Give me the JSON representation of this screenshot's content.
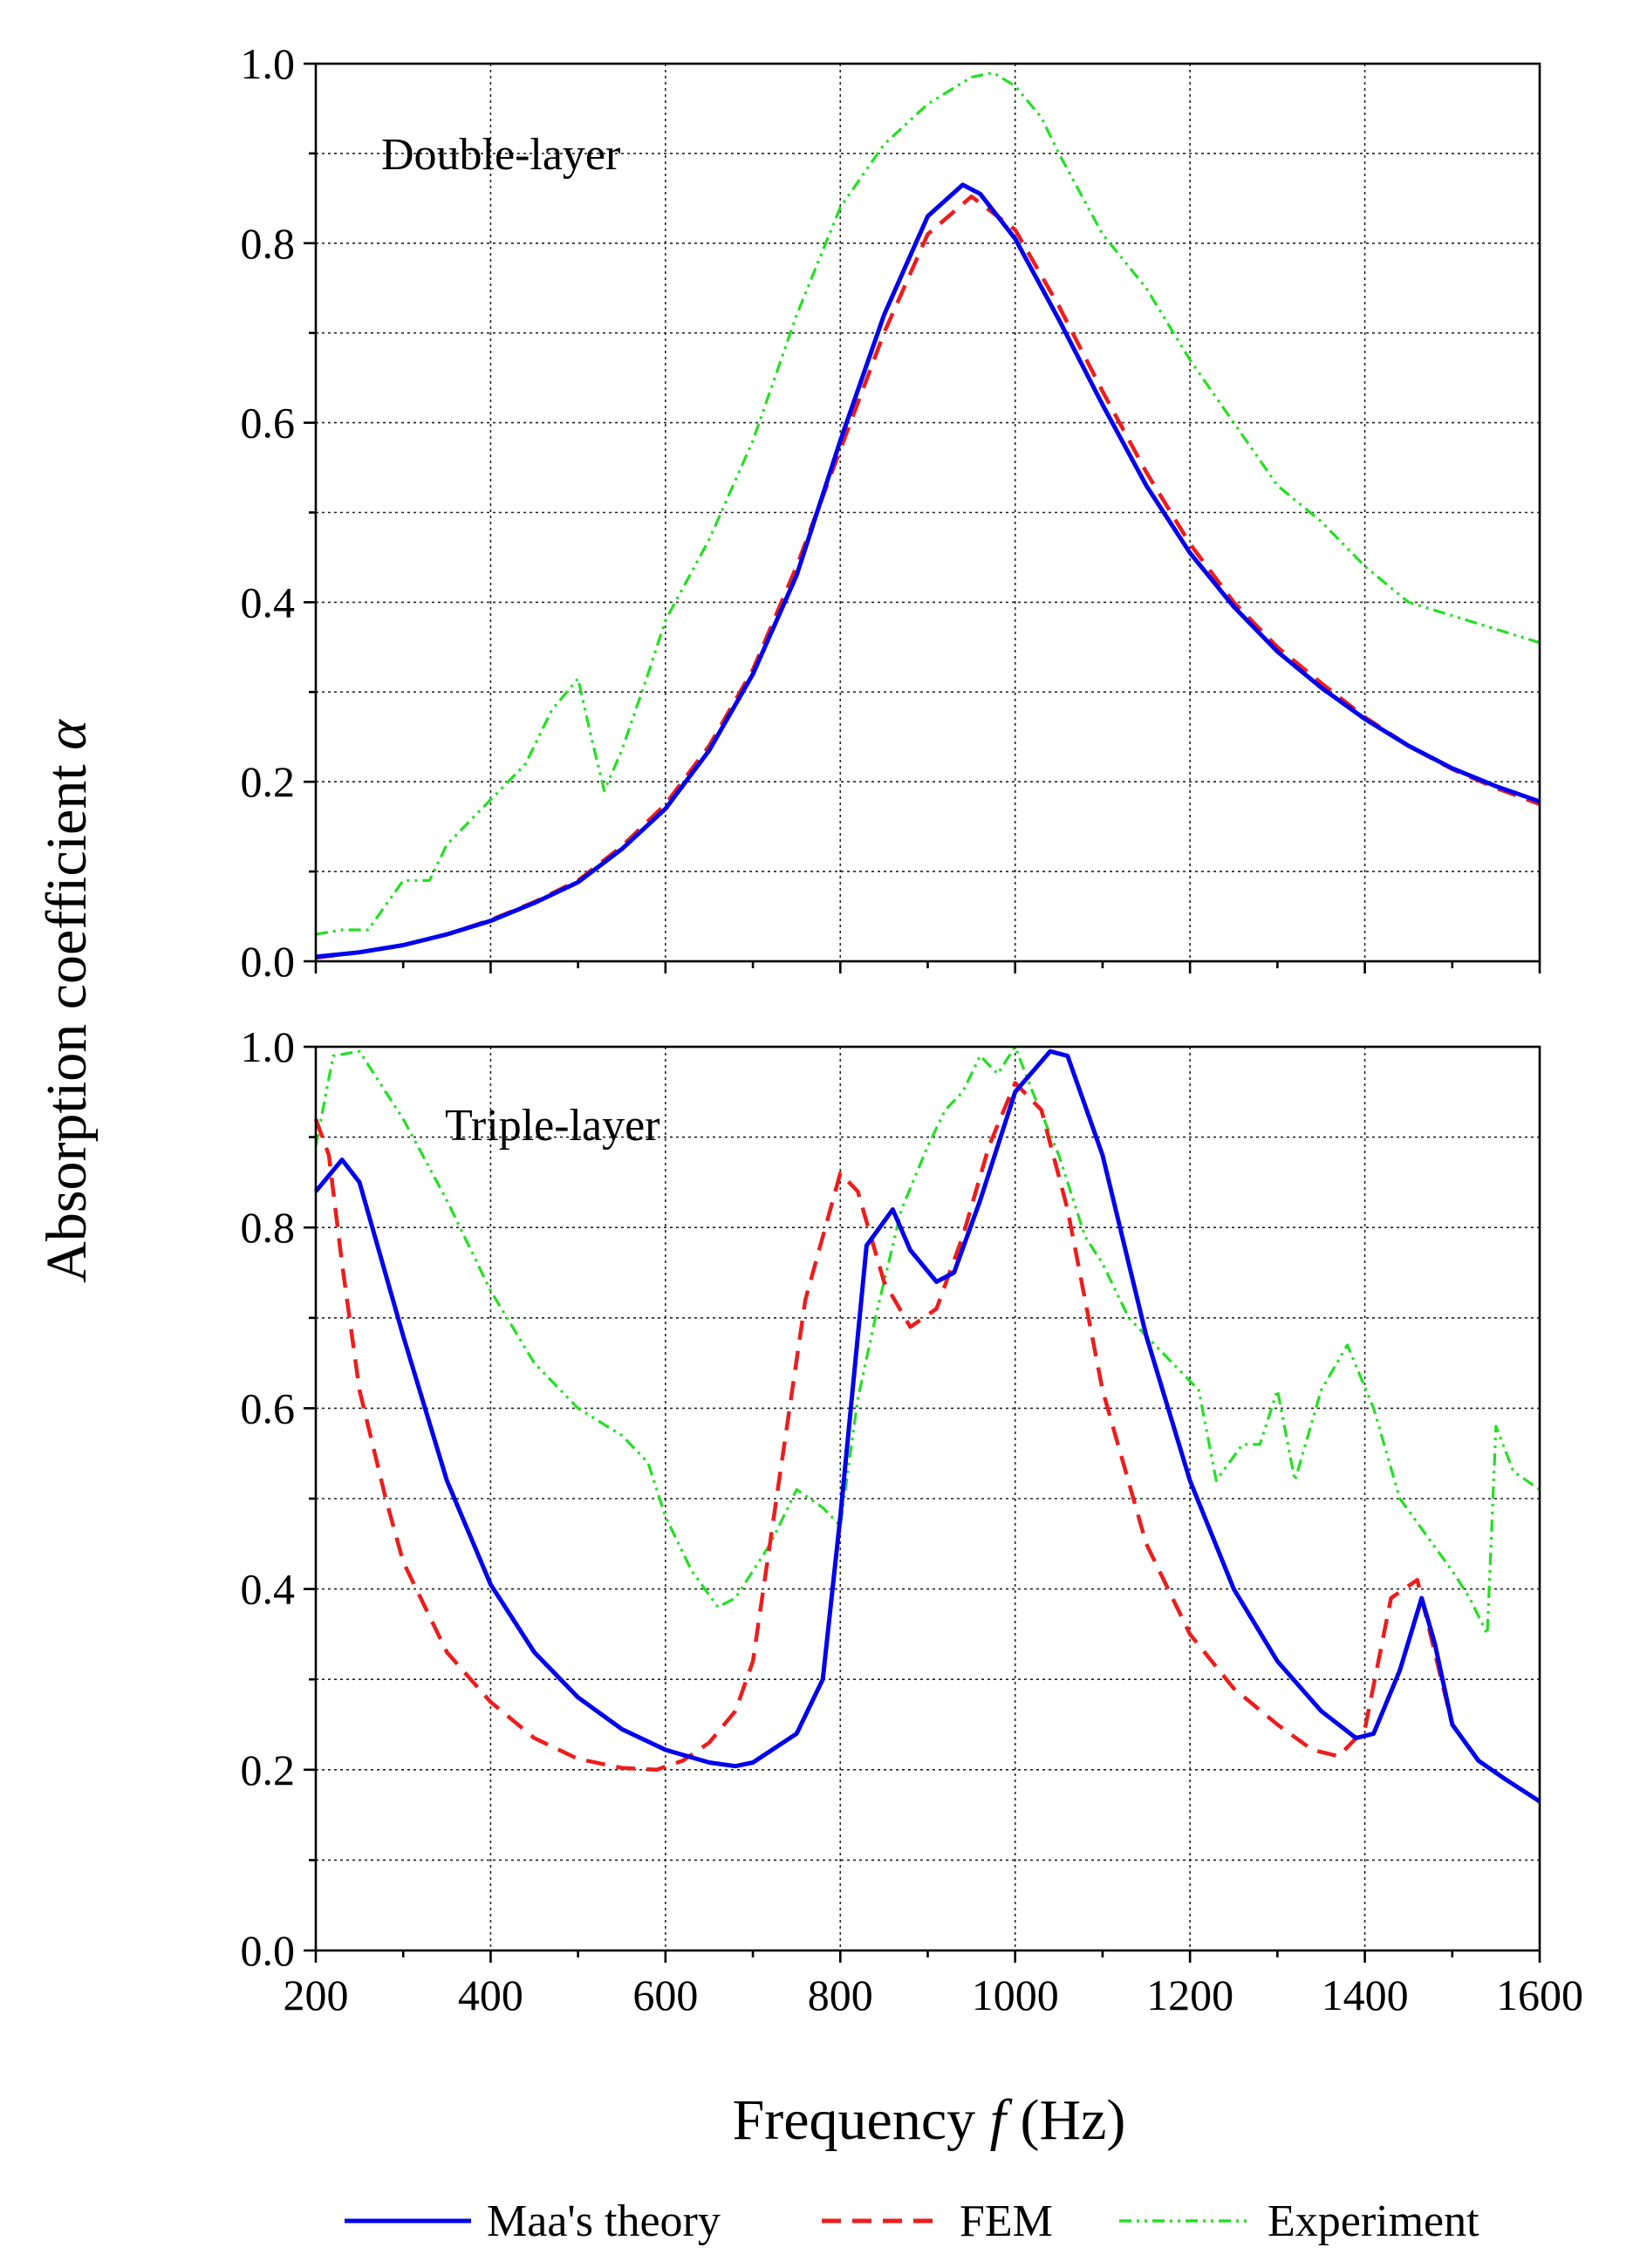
{
  "chart_data": {
    "type": "line",
    "ylabel": "Absorption coefficient",
    "ylabel_symbol": "α",
    "xlabel_main": "Frequency",
    "xlabel_symbol": "f",
    "xlabel_unit": "(Hz)",
    "xlim": [
      200,
      1600
    ],
    "xticks": [
      "200",
      "400",
      "600",
      "800",
      "1000",
      "1200",
      "1400",
      "1600"
    ],
    "ylim": [
      0.0,
      1.0
    ],
    "yticks": [
      "0.0",
      "0.2",
      "0.4",
      "0.6",
      "0.8",
      "1.0"
    ],
    "grid": true,
    "legend": [
      {
        "name": "Maa's theory",
        "color": "#0000ee",
        "style": "solid"
      },
      {
        "name": "FEM",
        "color": "#ee1c1c",
        "style": "dashed"
      },
      {
        "name": "Experiment",
        "color": "#22e022",
        "style": "dashdotdot"
      }
    ],
    "panels": [
      {
        "label": "Double-layer",
        "series": [
          {
            "name": "Maa's theory",
            "x": [
              200,
              250,
              300,
              350,
              400,
              450,
              500,
              550,
              600,
              650,
              700,
              750,
              800,
              850,
              900,
              940,
              960,
              1000,
              1050,
              1100,
              1150,
              1200,
              1250,
              1300,
              1350,
              1400,
              1450,
              1500,
              1550,
              1600
            ],
            "y": [
              0.005,
              0.01,
              0.018,
              0.03,
              0.045,
              0.065,
              0.088,
              0.125,
              0.17,
              0.235,
              0.32,
              0.43,
              0.58,
              0.72,
              0.83,
              0.865,
              0.855,
              0.805,
              0.715,
              0.62,
              0.53,
              0.455,
              0.395,
              0.345,
              0.305,
              0.27,
              0.24,
              0.215,
              0.195,
              0.178
            ]
          },
          {
            "name": "FEM",
            "x": [
              200,
              250,
              300,
              350,
              400,
              450,
              500,
              550,
              600,
              650,
              700,
              750,
              800,
              850,
              900,
              950,
              1000,
              1050,
              1100,
              1150,
              1200,
              1250,
              1300,
              1350,
              1400,
              1450,
              1500,
              1550,
              1600
            ],
            "y": [
              0.004,
              0.01,
              0.018,
              0.03,
              0.046,
              0.066,
              0.09,
              0.128,
              0.175,
              0.24,
              0.325,
              0.44,
              0.57,
              0.7,
              0.81,
              0.852,
              0.815,
              0.73,
              0.635,
              0.545,
              0.465,
              0.4,
              0.35,
              0.31,
              0.272,
              0.24,
              0.214,
              0.193,
              0.175
            ]
          },
          {
            "name": "Experiment",
            "x": [
              200,
              230,
              260,
              300,
              330,
              350,
              400,
              440,
              470,
              500,
              515,
              530,
              550,
              580,
              600,
              650,
              700,
              750,
              800,
              850,
              900,
              950,
              975,
              1000,
              1030,
              1050,
              1100,
              1150,
              1200,
              1250,
              1300,
              1350,
              1400,
              1450,
              1500,
              1550,
              1600
            ],
            "y": [
              0.03,
              0.035,
              0.035,
              0.09,
              0.09,
              0.13,
              0.18,
              0.22,
              0.28,
              0.315,
              0.25,
              0.19,
              0.235,
              0.32,
              0.38,
              0.47,
              0.58,
              0.72,
              0.84,
              0.91,
              0.955,
              0.985,
              0.99,
              0.975,
              0.94,
              0.9,
              0.81,
              0.75,
              0.67,
              0.6,
              0.53,
              0.49,
              0.44,
              0.4,
              0.385,
              0.37,
              0.355
            ]
          }
        ]
      },
      {
        "label": "Triple-layer",
        "series": [
          {
            "name": "Maa's theory",
            "x": [
              200,
              230,
              250,
              300,
              350,
              400,
              450,
              500,
              550,
              600,
              650,
              680,
              700,
              750,
              780,
              800,
              830,
              860,
              880,
              910,
              930,
              960,
              1000,
              1040,
              1060,
              1100,
              1150,
              1200,
              1250,
              1300,
              1350,
              1390,
              1410,
              1440,
              1465,
              1480,
              1500,
              1530,
              1560,
              1600
            ],
            "y": [
              0.84,
              0.875,
              0.85,
              0.68,
              0.52,
              0.405,
              0.33,
              0.28,
              0.245,
              0.222,
              0.208,
              0.204,
              0.208,
              0.24,
              0.3,
              0.48,
              0.78,
              0.82,
              0.775,
              0.74,
              0.75,
              0.83,
              0.95,
              0.995,
              0.99,
              0.88,
              0.68,
              0.52,
              0.4,
              0.32,
              0.265,
              0.235,
              0.24,
              0.31,
              0.39,
              0.34,
              0.25,
              0.21,
              0.19,
              0.165
            ]
          },
          {
            "name": "FEM",
            "x": [
              200,
              215,
              230,
              250,
              280,
              300,
              350,
              400,
              450,
              500,
              550,
              590,
              620,
              650,
              680,
              700,
              730,
              760,
              800,
              820,
              850,
              880,
              910,
              940,
              970,
              1000,
              1030,
              1060,
              1100,
              1150,
              1200,
              1250,
              1300,
              1340,
              1370,
              1400,
              1430,
              1460,
              1480,
              1500,
              1530,
              1560,
              1600
            ],
            "y": [
              0.92,
              0.88,
              0.76,
              0.62,
              0.5,
              0.43,
              0.33,
              0.275,
              0.235,
              0.212,
              0.202,
              0.2,
              0.21,
              0.23,
              0.265,
              0.32,
              0.52,
              0.72,
              0.86,
              0.84,
              0.74,
              0.69,
              0.71,
              0.79,
              0.89,
              0.96,
              0.93,
              0.82,
              0.62,
              0.45,
              0.35,
              0.29,
              0.25,
              0.222,
              0.215,
              0.245,
              0.39,
              0.41,
              0.33,
              0.25,
              0.21,
              0.19,
              0.165
            ]
          },
          {
            "name": "Experiment",
            "x": [
              200,
              220,
              250,
              300,
              350,
              400,
              450,
              500,
              550,
              580,
              600,
              630,
              660,
              680,
              700,
              720,
              750,
              780,
              800,
              820,
              840,
              870,
              900,
              920,
              940,
              960,
              980,
              1000,
              1020,
              1050,
              1080,
              1100,
              1130,
              1150,
              1180,
              1210,
              1230,
              1260,
              1280,
              1300,
              1320,
              1350,
              1380,
              1410,
              1440,
              1470,
              1500,
              1520,
              1540,
              1550,
              1570,
              1600
            ],
            "y": [
              0.89,
              0.99,
              0.995,
              0.92,
              0.83,
              0.73,
              0.65,
              0.6,
              0.57,
              0.54,
              0.48,
              0.42,
              0.38,
              0.39,
              0.42,
              0.45,
              0.51,
              0.49,
              0.47,
              0.61,
              0.7,
              0.82,
              0.89,
              0.93,
              0.95,
              0.99,
              0.97,
              1.0,
              0.95,
              0.88,
              0.79,
              0.76,
              0.7,
              0.68,
              0.65,
              0.62,
              0.52,
              0.56,
              0.56,
              0.62,
              0.52,
              0.62,
              0.67,
              0.6,
              0.5,
              0.46,
              0.42,
              0.39,
              0.35,
              0.58,
              0.53,
              0.51
            ]
          }
        ]
      }
    ]
  }
}
